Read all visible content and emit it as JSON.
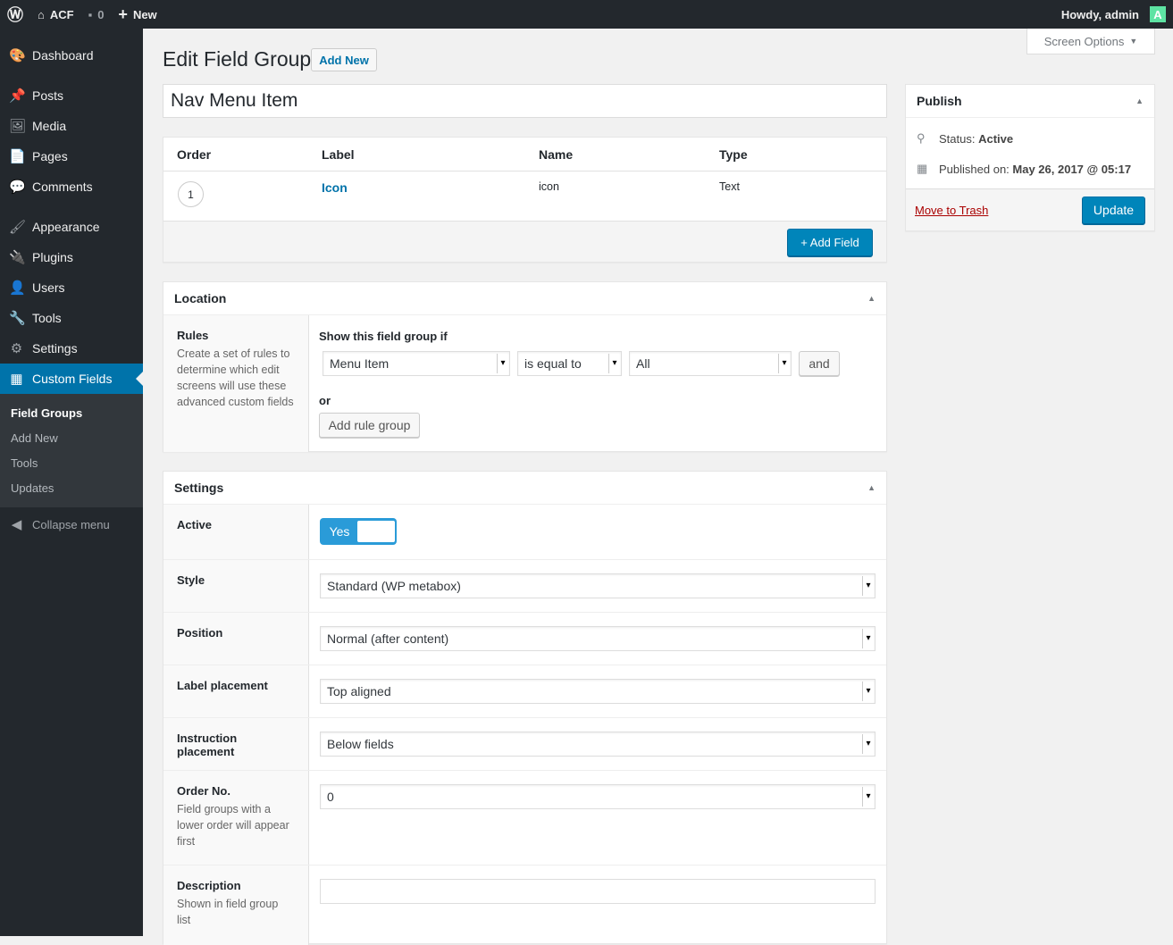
{
  "adminbar": {
    "site": "ACF",
    "comments": "0",
    "new": "New",
    "howdy": "Howdy, admin",
    "avatar": "A"
  },
  "sidebar": {
    "items": [
      {
        "label": "Dashboard",
        "icon": "dashboard-icon",
        "g": "🎨"
      },
      {
        "label": "Posts",
        "icon": "pin-icon",
        "g": "📌"
      },
      {
        "label": "Media",
        "icon": "media-icon",
        "g": "🖼"
      },
      {
        "label": "Pages",
        "icon": "pages-icon",
        "g": "📄"
      },
      {
        "label": "Comments",
        "icon": "comment-icon",
        "g": "💬"
      },
      {
        "label": "Appearance",
        "icon": "brush-icon",
        "g": "🖌"
      },
      {
        "label": "Plugins",
        "icon": "plugin-icon",
        "g": "🔌"
      },
      {
        "label": "Users",
        "icon": "user-icon",
        "g": "👤"
      },
      {
        "label": "Tools",
        "icon": "wrench-icon",
        "g": "🔧"
      },
      {
        "label": "Settings",
        "icon": "settings-icon",
        "g": "⚙"
      },
      {
        "label": "Custom Fields",
        "icon": "table-icon",
        "g": "▦"
      }
    ],
    "submenu": [
      "Field Groups",
      "Add New",
      "Tools",
      "Updates"
    ],
    "collapse": "Collapse menu"
  },
  "page": {
    "title": "Edit Field Group",
    "add_new": "Add New",
    "screen_options": "Screen Options",
    "group_title": "Nav Menu Item"
  },
  "fields": {
    "headers": [
      "Order",
      "Label",
      "Name",
      "Type"
    ],
    "rows": [
      {
        "order": "1",
        "label": "Icon",
        "name": "icon",
        "type": "Text"
      }
    ],
    "add_field": "+ Add Field"
  },
  "location": {
    "title": "Location",
    "rules_label": "Rules",
    "rules_desc": "Create a set of rules to determine which edit screens will use these advanced custom fields",
    "show_if": "Show this field group if",
    "param": "Menu Item",
    "operator": "is equal to",
    "value": "All",
    "and": "and",
    "or": "or",
    "add_rule_group": "Add rule group"
  },
  "settings": {
    "title": "Settings",
    "active_label": "Active",
    "active_value": "Yes",
    "active": true,
    "style_label": "Style",
    "style": "Standard (WP metabox)",
    "position_label": "Position",
    "position": "Normal (after content)",
    "label_placement_label": "Label placement",
    "label_placement": "Top aligned",
    "instruction_label": "Instruction placement",
    "instruction": "Below fields",
    "order_label": "Order No.",
    "order_desc": "Field groups with a lower order will appear first",
    "order": "0",
    "desc_label": "Description",
    "desc_desc": "Shown in field group list",
    "desc": ""
  },
  "publish": {
    "title": "Publish",
    "status_label": "Status: ",
    "status": "Active",
    "published_label": "Published on: ",
    "published": "May 26, 2017 @ 05:17",
    "trash": "Move to Trash",
    "update": "Update"
  },
  "colors": {
    "accent": "#0073aa",
    "primary_button": "#0085ba",
    "trash": "#a00",
    "sidebar": "#23282d"
  }
}
